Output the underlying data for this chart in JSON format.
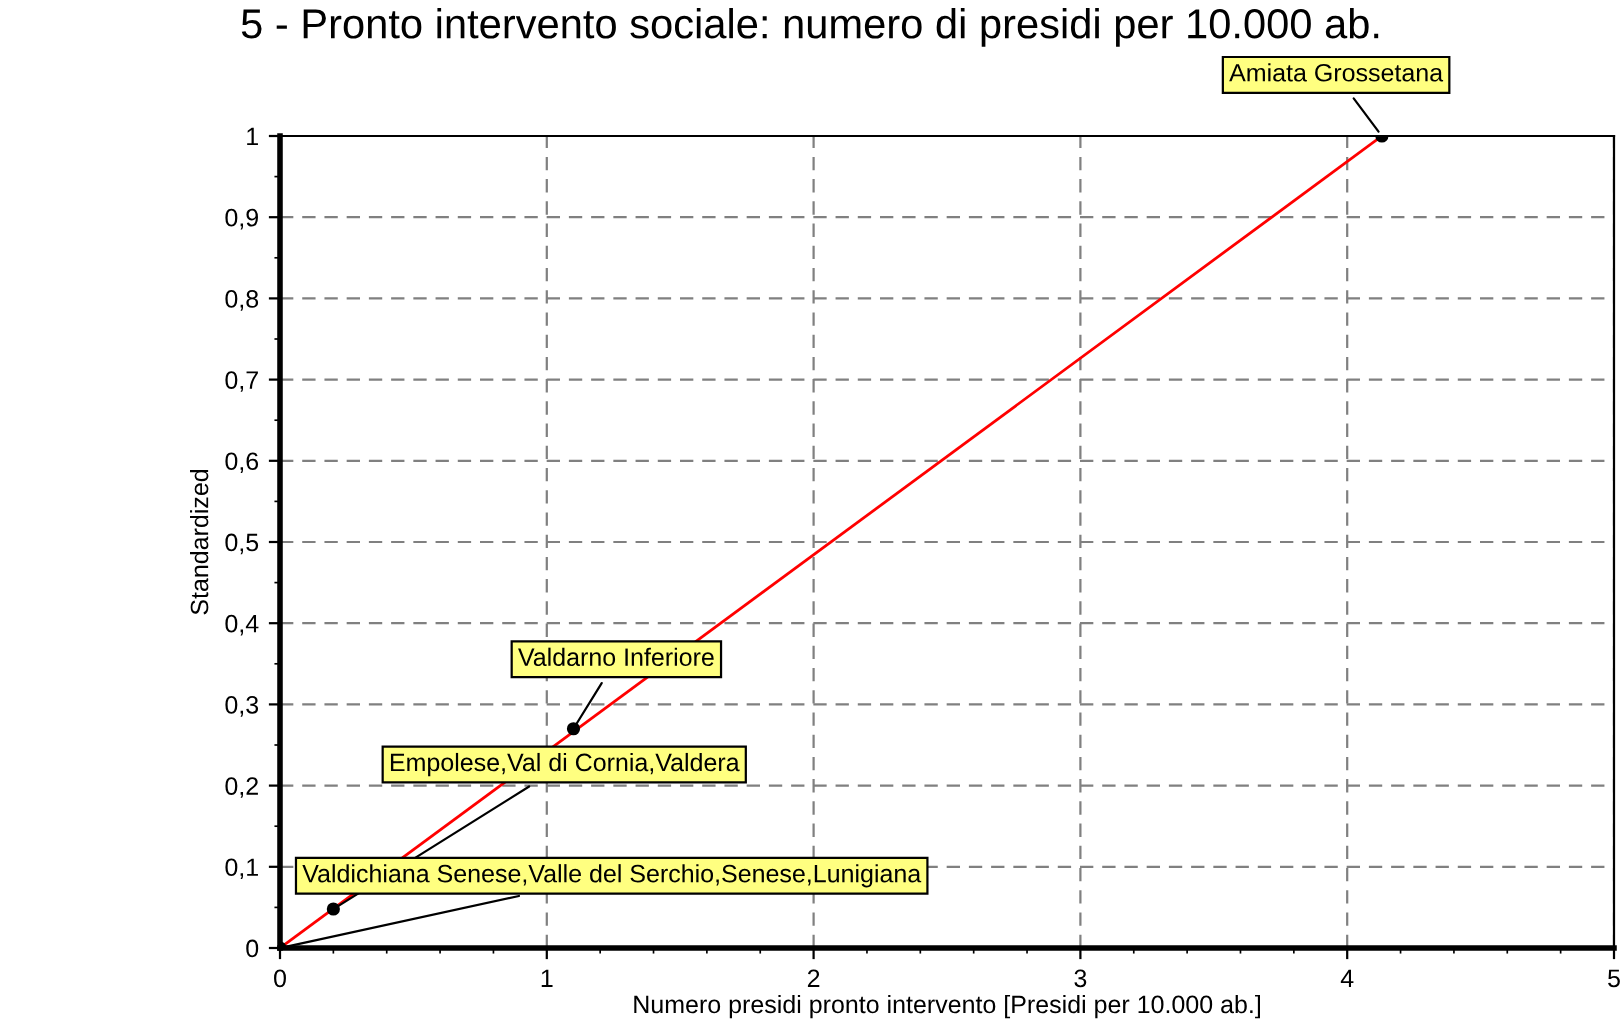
{
  "chart_data": {
    "type": "line",
    "title": "5 - Pronto intervento sociale: numero di presidi per 10.000 ab.",
    "xlabel": "Numero presidi pronto intervento [Presidi per 10.000 ab.]",
    "ylabel": "Standardized",
    "series": [
      {
        "color": "#ff0000",
        "x": [
          0,
          4.13
        ],
        "values": [
          0,
          1
        ],
        "marker": "none"
      },
      {
        "type": "scatter",
        "color": "#000000",
        "x": [
          0,
          0.2,
          1.1,
          4.13
        ],
        "values": [
          0,
          0.048,
          0.27,
          1
        ],
        "marker": "circle"
      }
    ],
    "annotations": [
      {
        "text": "Valdichiana Senese,Valle del Serchio,Senese,Lunigiana",
        "x": 0,
        "y": 0
      },
      {
        "text": "Empolese,Val di Cornia,Valdera",
        "x": 0.2,
        "y": 0.048
      },
      {
        "text": "Valdarno Inferiore",
        "x": 1.1,
        "y": 0.27
      },
      {
        "text": "Amiata Grossetana",
        "x": 4.13,
        "y": 1
      }
    ],
    "xlim": [
      0,
      5
    ],
    "xticks": [
      0,
      1,
      2,
      3,
      4,
      5
    ],
    "ylim": [
      0,
      1
    ],
    "yticks": [
      0,
      {
        "value": 0.1,
        "label": "0,1"
      },
      {
        "value": 0.2,
        "label": "0,2"
      },
      {
        "value": 0.3,
        "label": "0,3"
      },
      {
        "value": 0.4,
        "label": "0,4"
      },
      {
        "value": 0.5,
        "label": "0,5"
      },
      {
        "value": 0.6,
        "label": "0,6"
      },
      {
        "value": 0.7,
        "label": "0,7"
      },
      {
        "value": 0.8,
        "label": "0,8"
      },
      {
        "value": 0.9,
        "label": "0,9"
      },
      1
    ],
    "grid": true,
    "line_style": "solid"
  }
}
